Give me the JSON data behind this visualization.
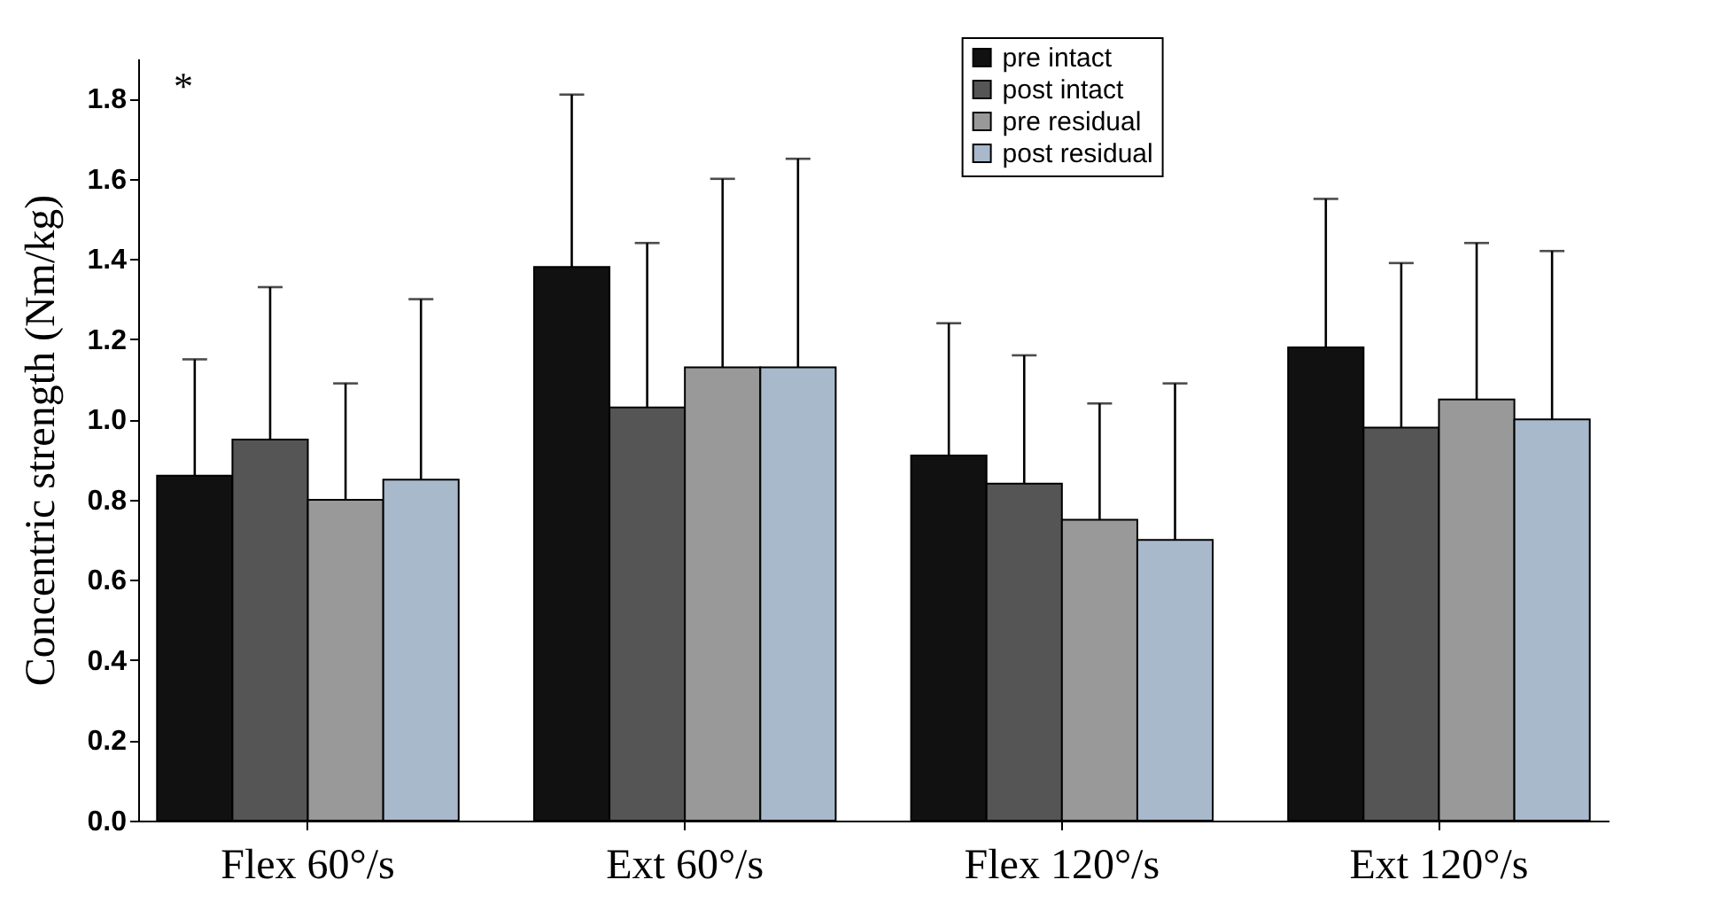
{
  "chart_data": {
    "type": "bar",
    "ylabel": "Concentric strength (Nm/kg)",
    "categories": [
      "Flex 60°/s",
      "Ext 60°/s",
      "Flex 120°/s",
      "Ext 120°/s"
    ],
    "series": [
      {
        "name": "pre intact",
        "color": "#111111",
        "values": [
          0.86,
          1.38,
          0.91,
          1.18
        ],
        "errors": [
          [
            0.86,
            1.15
          ],
          [
            1.38,
            1.81
          ],
          [
            0.91,
            1.24
          ],
          [
            1.18,
            1.55
          ]
        ]
      },
      {
        "name": "post intact",
        "color": "#555555",
        "values": [
          0.95,
          1.03,
          0.84,
          0.98
        ],
        "errors": [
          [
            0.95,
            1.33
          ],
          [
            1.03,
            1.44
          ],
          [
            0.84,
            1.16
          ],
          [
            0.98,
            1.39
          ]
        ]
      },
      {
        "name": "pre residual",
        "color": "#999999",
        "values": [
          0.8,
          1.13,
          0.75,
          1.05
        ],
        "errors": [
          [
            0.8,
            1.09
          ],
          [
            1.13,
            1.6
          ],
          [
            0.75,
            1.04
          ],
          [
            1.05,
            1.44
          ]
        ]
      },
      {
        "name": "post residual",
        "color": "#a9b9cc",
        "values": [
          0.85,
          1.13,
          0.7,
          1.0
        ],
        "errors": [
          [
            0.85,
            1.3
          ],
          [
            1.13,
            1.65
          ],
          [
            0.7,
            1.09
          ],
          [
            1.0,
            1.42
          ]
        ]
      }
    ],
    "annotations": [
      "*"
    ],
    "ylim": [
      0,
      1.9
    ],
    "yticks": [
      {
        "value": 0,
        "label": "0.0"
      },
      0.2,
      0.4,
      0.6,
      0.8,
      {
        "value": 1,
        "label": "1.0"
      },
      1.2,
      1.4,
      1.6,
      1.8
    ],
    "grid": false,
    "legend": "top"
  }
}
